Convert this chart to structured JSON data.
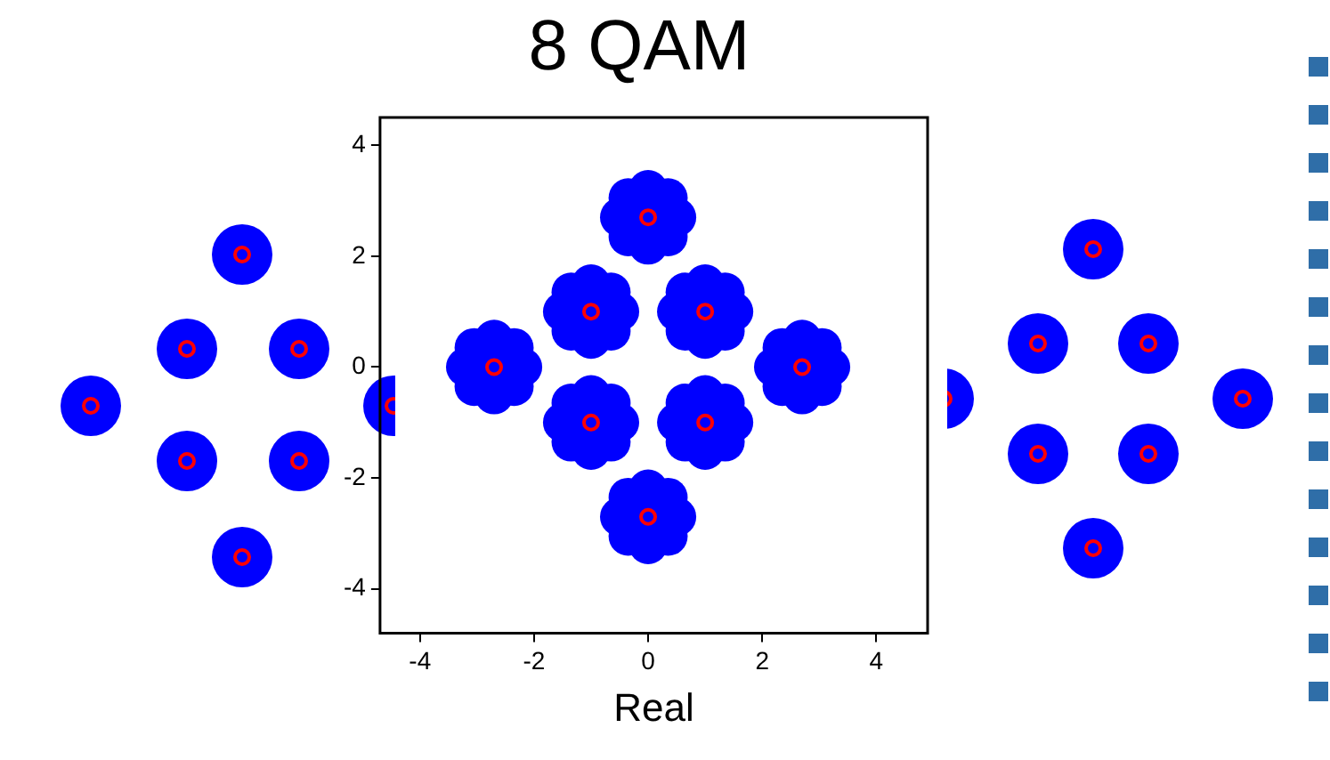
{
  "chart_data": {
    "type": "scatter",
    "title": "8 QAM",
    "xlabel": "Real",
    "xlim": [
      -4.7,
      4.9
    ],
    "ylim": [
      -4.8,
      4.5
    ],
    "xticks": [
      -4,
      -2,
      0,
      2,
      4
    ],
    "yticks": [
      -4,
      -2,
      0,
      2,
      4
    ],
    "grid": false,
    "legend": false,
    "series": [
      {
        "color": "#0000ff",
        "marker": "circle",
        "x": [
          0,
          0.5,
          -0.5,
          0,
          0,
          0.35,
          0.35,
          -0.35,
          -0.35,
          -1,
          -0.5,
          -1.5,
          -1,
          -1,
          -0.65,
          -0.65,
          -1.35,
          -1.35,
          1,
          1.5,
          0.5,
          1,
          1,
          1.35,
          1.35,
          0.65,
          0.65,
          -2.7,
          -2.2,
          -3.2,
          -2.7,
          -2.7,
          -2.35,
          -2.35,
          -3.05,
          -3.05,
          2.7,
          3.2,
          2.2,
          2.7,
          2.7,
          3.05,
          3.05,
          2.35,
          2.35,
          -1,
          -0.5,
          -1.5,
          -1,
          -1,
          -0.65,
          -0.65,
          -1.35,
          -1.35,
          1,
          1.5,
          0.5,
          1,
          1,
          1.35,
          1.35,
          0.65,
          0.65,
          0,
          0.5,
          -0.5,
          0,
          0,
          0.35,
          0.35,
          -0.35,
          -0.35
        ],
        "values": [
          2.7,
          2.7,
          2.7,
          3.2,
          2.2,
          3.05,
          2.35,
          3.05,
          2.35,
          1,
          1,
          1,
          1.5,
          0.5,
          1.35,
          0.65,
          1.35,
          0.65,
          1,
          1,
          1,
          1.5,
          0.5,
          1.35,
          0.65,
          1.35,
          0.65,
          0,
          0,
          0,
          0.5,
          -0.5,
          0.35,
          -0.35,
          0.35,
          -0.35,
          0,
          0,
          0,
          0.5,
          -0.5,
          0.35,
          -0.35,
          0.35,
          -0.35,
          -1,
          -1,
          -1,
          -0.5,
          -1.5,
          -0.65,
          -1.35,
          -0.65,
          -1.35,
          -1,
          -1,
          -1,
          -0.5,
          -1.5,
          -0.65,
          -1.35,
          -0.65,
          -1.35,
          -2.7,
          -2.7,
          -2.7,
          -2.2,
          -3.2,
          -2.35,
          -3.05,
          -2.35,
          -3.05
        ]
      },
      {
        "color": "#ff0000",
        "marker": "circle",
        "x": [
          0,
          -1,
          1,
          -2.7,
          2.7,
          -1,
          1,
          0
        ],
        "values": [
          2.7,
          1,
          1,
          0,
          0,
          -1,
          -1,
          -2.7
        ]
      }
    ]
  }
}
